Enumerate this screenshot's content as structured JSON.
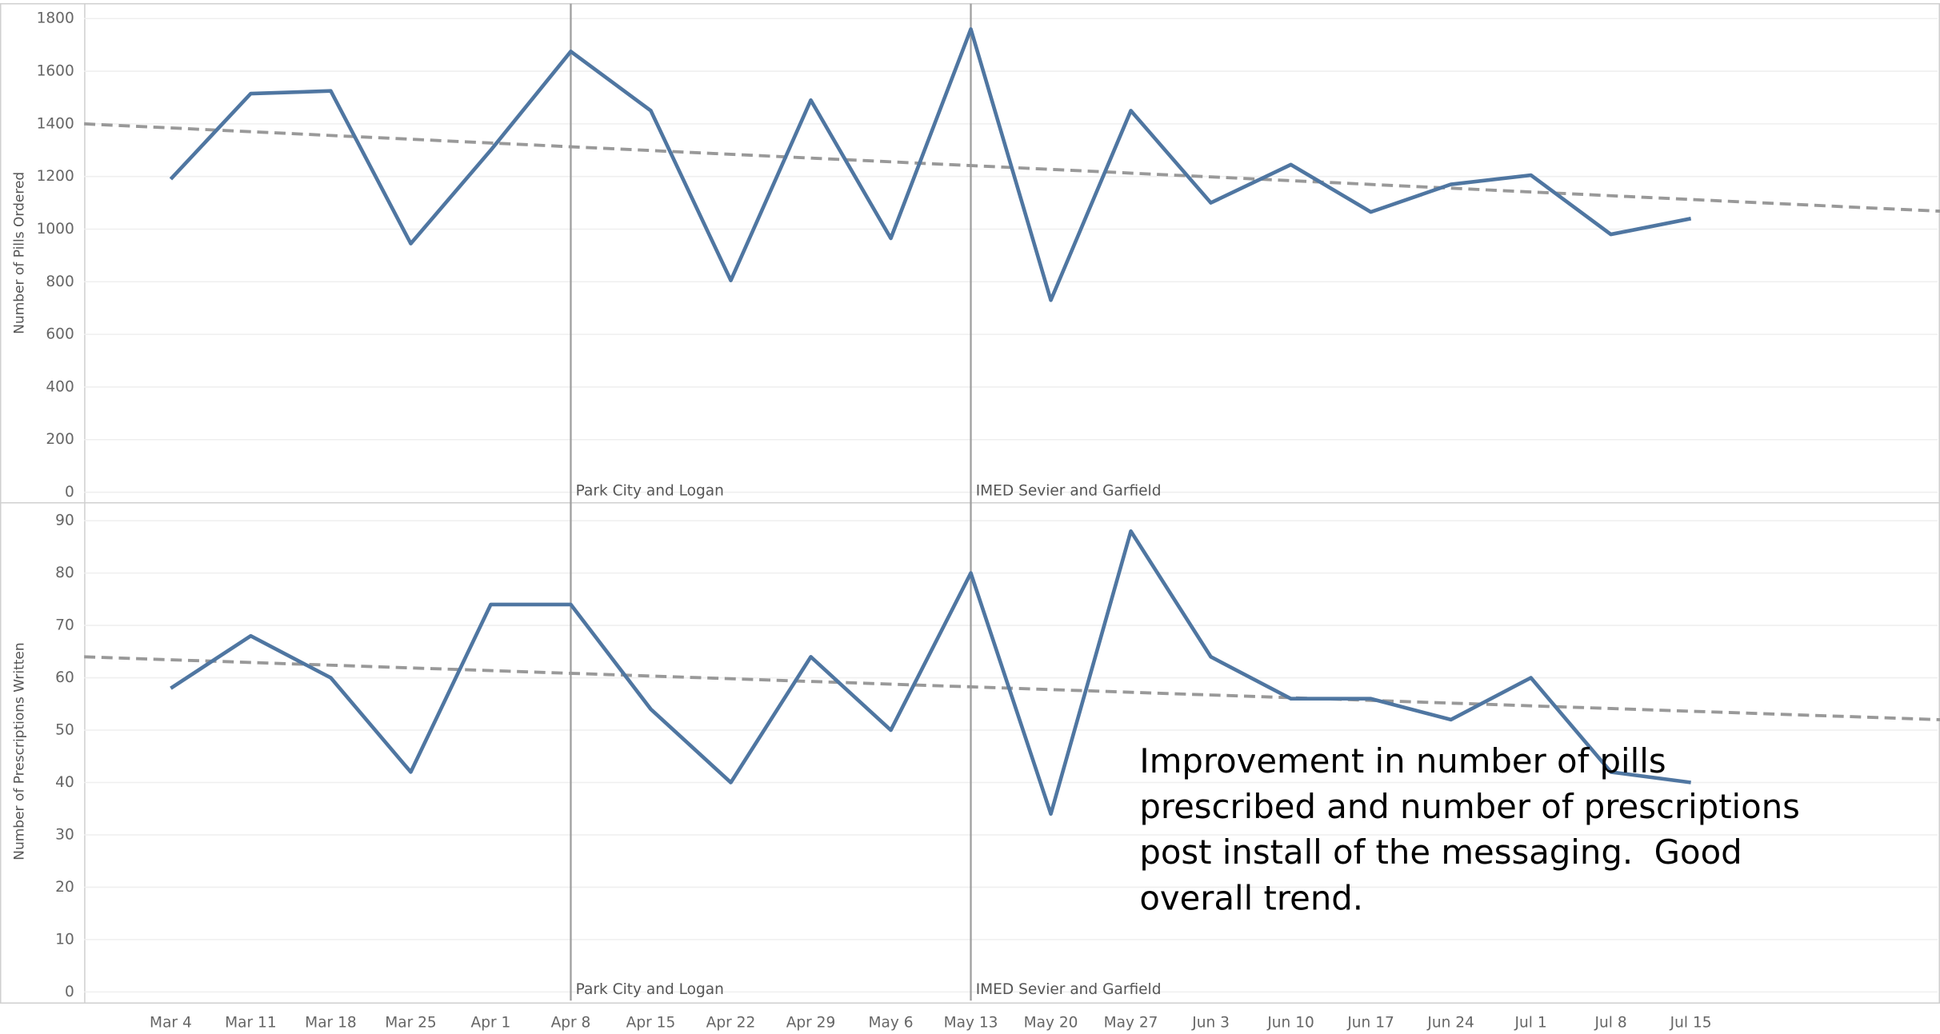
{
  "chart_data": [
    {
      "type": "line",
      "ylabel": "Number of Pills Ordered",
      "series": [
        {
          "name": "Pills Ordered",
          "color": "#4f76a1",
          "values": [
            1190,
            1515,
            1525,
            945,
            1300,
            1675,
            1450,
            805,
            1490,
            965,
            1760,
            730,
            1450,
            1100,
            1245,
            1065,
            1170,
            1205,
            980,
            1040
          ]
        }
      ],
      "trend": {
        "color": "#999999",
        "start": 1400,
        "end": 1068
      },
      "reference_lines": [
        {
          "at": "Apr 8",
          "label": "Park City and Logan"
        },
        {
          "at": "May 13",
          "label": "IMED Sevier and Garfield"
        }
      ],
      "ylim": [
        0,
        1800
      ],
      "yticks": [
        0,
        200,
        400,
        600,
        800,
        1000,
        1200,
        1400,
        1600,
        1800
      ],
      "grid": true
    },
    {
      "type": "line",
      "ylabel": "Number of Prescriptions Written",
      "categories": [
        "Mar 4",
        "Mar 11",
        "Mar 18",
        "Mar 25",
        "Apr 1",
        "Apr 8",
        "Apr 15",
        "Apr 22",
        "Apr 29",
        "May 6",
        "May 13",
        "May 20",
        "May 27",
        "Jun 3",
        "Jun 10",
        "Jun 17",
        "Jun 24",
        "Jul 1",
        "Jul 8",
        "Jul 15"
      ],
      "series": [
        {
          "name": "Prescriptions Written",
          "color": "#4f76a1",
          "values": [
            58,
            68,
            60,
            42,
            74,
            74,
            54,
            40,
            64,
            50,
            80,
            34,
            88,
            64,
            56,
            56,
            52,
            60,
            42,
            40
          ]
        }
      ],
      "trend": {
        "color": "#999999",
        "start": 64,
        "end": 52
      },
      "reference_lines": [
        {
          "at": "Apr 8",
          "label": "Park City and Logan"
        },
        {
          "at": "May 13",
          "label": "IMED Sevier and Garfield"
        }
      ],
      "annotation": [
        "Improvement in number of pills",
        "prescribed and number of prescriptions",
        "post install of the messaging.  Good",
        "overall trend."
      ],
      "ylim": [
        0,
        90
      ],
      "yticks": [
        0,
        10,
        20,
        30,
        40,
        50,
        60,
        70,
        80,
        90
      ],
      "grid": true
    }
  ]
}
